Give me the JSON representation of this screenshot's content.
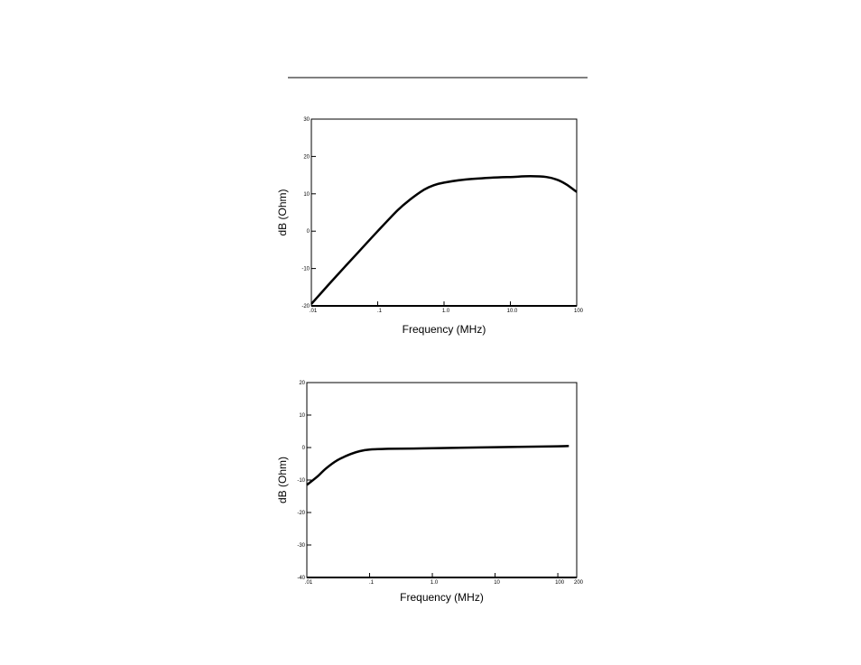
{
  "chart_data": [
    {
      "type": "line",
      "xlabel": "Frequency (MHz)",
      "ylabel": "dB (Ohm)",
      "x_scale": "log",
      "xlim": [
        0.01,
        100
      ],
      "ylim": [
        -20,
        30
      ],
      "x_ticks": [
        {
          "value": 0.01,
          "label": ".01"
        },
        {
          "value": 0.1,
          "label": ".1"
        },
        {
          "value": 1,
          "label": "1.0"
        },
        {
          "value": 10,
          "label": "10.0"
        },
        {
          "value": 100,
          "label": "100"
        }
      ],
      "y_ticks": [
        {
          "value": 30,
          "label": "30"
        },
        {
          "value": 20,
          "label": "20"
        },
        {
          "value": 10,
          "label": "10"
        },
        {
          "value": 0,
          "label": "0"
        },
        {
          "value": -10,
          "label": "-10"
        },
        {
          "value": -20,
          "label": "-20"
        }
      ],
      "grid": false,
      "series": [
        {
          "x": [
            0.01,
            0.02,
            0.05,
            0.1,
            0.2,
            0.3,
            0.5,
            0.7,
            1.0,
            2.0,
            5.0,
            10.0,
            20.0,
            35.0,
            50.0,
            70.0,
            100.0
          ],
          "y": [
            -19.5,
            -13.5,
            -5.8,
            0.0,
            5.6,
            8.3,
            11.1,
            12.3,
            13.0,
            13.8,
            14.3,
            14.5,
            14.7,
            14.5,
            13.8,
            12.5,
            10.5
          ]
        }
      ]
    },
    {
      "type": "line",
      "xlabel": "Frequency (MHz)",
      "ylabel": "dB (Ohm)",
      "x_scale": "log",
      "xlim": [
        0.01,
        200
      ],
      "ylim": [
        -40,
        20
      ],
      "x_ticks": [
        {
          "value": 0.01,
          "label": ".01"
        },
        {
          "value": 0.1,
          "label": ".1"
        },
        {
          "value": 1,
          "label": "1.0"
        },
        {
          "value": 10,
          "label": "10"
        },
        {
          "value": 100,
          "label": "100"
        },
        {
          "value": 200,
          "label": "200"
        }
      ],
      "y_ticks": [
        {
          "value": 20,
          "label": "20"
        },
        {
          "value": 10,
          "label": "10"
        },
        {
          "value": 0,
          "label": "0"
        },
        {
          "value": -10,
          "label": "-10"
        },
        {
          "value": -20,
          "label": "-20"
        },
        {
          "value": -30,
          "label": "-30"
        },
        {
          "value": -40,
          "label": "-40"
        }
      ],
      "grid": false,
      "series": [
        {
          "x": [
            0.01,
            0.015,
            0.02,
            0.03,
            0.05,
            0.07,
            0.1,
            0.2,
            0.5,
            1.0,
            10.0,
            100.0,
            150.0
          ],
          "y": [
            -11.5,
            -8.8,
            -6.5,
            -4.0,
            -2.0,
            -1.1,
            -0.6,
            -0.4,
            -0.3,
            -0.2,
            0.1,
            0.4,
            0.5
          ]
        }
      ]
    }
  ]
}
